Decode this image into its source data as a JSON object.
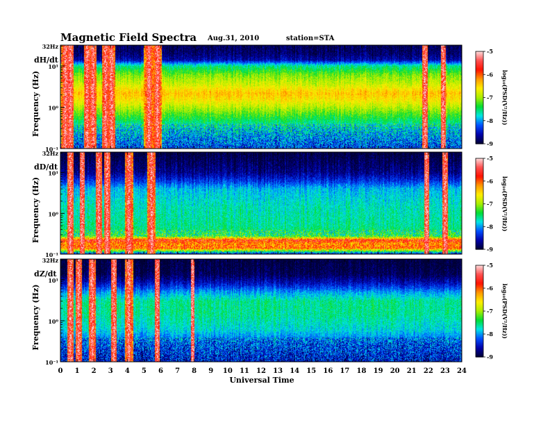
{
  "header": {
    "title": "Magnetic  Field  Spectra",
    "date": "Aug.31, 2010",
    "station": "station=STA"
  },
  "chart_data": {
    "type": "heatmap",
    "xlabel": "Universal Time",
    "x_range": [
      0,
      24
    ],
    "x_ticks": [
      "0",
      "1",
      "2",
      "3",
      "4",
      "5",
      "6",
      "7",
      "8",
      "9",
      "10",
      "11",
      "12",
      "13",
      "14",
      "15",
      "16",
      "17",
      "18",
      "19",
      "20",
      "21",
      "22",
      "23",
      "24"
    ],
    "ylim_hz": [
      0.1,
      32
    ],
    "y_scale": "log",
    "colorbar": {
      "range": [
        -9,
        -5
      ],
      "ticks": [
        "-5",
        "-6",
        "-7",
        "-8",
        "-9"
      ],
      "label": "log₁₀(PSD(V²/Hz))",
      "colors": [
        "#000033",
        "#0000aa",
        "#0050ff",
        "#00e6e6",
        "#00dd33",
        "#aaee00",
        "#ffee00",
        "#ff9900",
        "#ff1100",
        "#ff5050",
        "#ffdddd"
      ]
    },
    "panels": [
      {
        "component": "dH/dt",
        "ylabel": "Frequency  (Hz)",
        "top_label": "32Hz",
        "y_tick_labels": [
          "10¹",
          "10⁰",
          "10⁻¹"
        ],
        "profile": [
          [
            0.1,
            -8.3
          ],
          [
            0.3,
            -7.8
          ],
          [
            0.7,
            -7.2
          ],
          [
            1.5,
            -6.6
          ],
          [
            2.2,
            -6.4
          ],
          [
            3.5,
            -6.8
          ],
          [
            6,
            -7.1
          ],
          [
            10,
            -7.6
          ],
          [
            14,
            -8.6
          ],
          [
            20,
            -8.8
          ],
          [
            32,
            -8.9
          ]
        ],
        "bursts": [
          {
            "t": 0.3,
            "w": 0.25
          },
          {
            "t": 0.6,
            "w": 0.2
          },
          {
            "t": 1.6,
            "w": 0.2
          },
          {
            "t": 1.95,
            "w": 0.2
          },
          {
            "t": 2.7,
            "w": 0.2
          },
          {
            "t": 3.05,
            "w": 0.25
          },
          {
            "t": 5.3,
            "w": 0.3
          },
          {
            "t": 5.8,
            "w": 0.25
          },
          {
            "t": 21.8,
            "w": 0.15
          },
          {
            "t": 22.9,
            "w": 0.15
          }
        ]
      },
      {
        "component": "dD/dt",
        "ylabel": "Frequency  (Hz)",
        "top_label": "32Hz",
        "y_tick_labels": [
          "10¹",
          "10⁰",
          "10⁻¹"
        ],
        "profile": [
          [
            0.1,
            -8.6
          ],
          [
            0.14,
            -6.0
          ],
          [
            0.18,
            -6.2
          ],
          [
            0.22,
            -5.7
          ],
          [
            0.28,
            -7.4
          ],
          [
            0.5,
            -7.6
          ],
          [
            1.5,
            -7.7
          ],
          [
            4,
            -7.9
          ],
          [
            6,
            -8.3
          ],
          [
            10,
            -8.7
          ],
          [
            32,
            -9.0
          ]
        ],
        "bursts": [
          {
            "t": 0.6,
            "w": 0.2
          },
          {
            "t": 1.3,
            "w": 0.15
          },
          {
            "t": 2.3,
            "w": 0.2
          },
          {
            "t": 2.8,
            "w": 0.2
          },
          {
            "t": 4.1,
            "w": 0.25
          },
          {
            "t": 5.45,
            "w": 0.25
          },
          {
            "t": 21.9,
            "w": 0.15
          },
          {
            "t": 23.0,
            "w": 0.15
          }
        ]
      },
      {
        "component": "dZ/dt",
        "ylabel": "Frequency  (Hz)",
        "top_label": "32Hz",
        "y_tick_labels": [
          "10¹",
          "10⁰",
          "10⁻¹"
        ],
        "profile": [
          [
            0.1,
            -8.5
          ],
          [
            0.3,
            -8.2
          ],
          [
            0.6,
            -7.8
          ],
          [
            1.5,
            -7.6
          ],
          [
            3,
            -7.6
          ],
          [
            5,
            -8.0
          ],
          [
            8,
            -8.5
          ],
          [
            14,
            -8.9
          ],
          [
            32,
            -9.0
          ]
        ],
        "bursts": [
          {
            "t": 0.6,
            "w": 0.2
          },
          {
            "t": 1.1,
            "w": 0.2
          },
          {
            "t": 1.9,
            "w": 0.2
          },
          {
            "t": 3.2,
            "w": 0.15
          },
          {
            "t": 4.1,
            "w": 0.25
          },
          {
            "t": 5.8,
            "w": 0.15
          },
          {
            "t": 7.9,
            "w": 0.1
          }
        ]
      }
    ]
  }
}
